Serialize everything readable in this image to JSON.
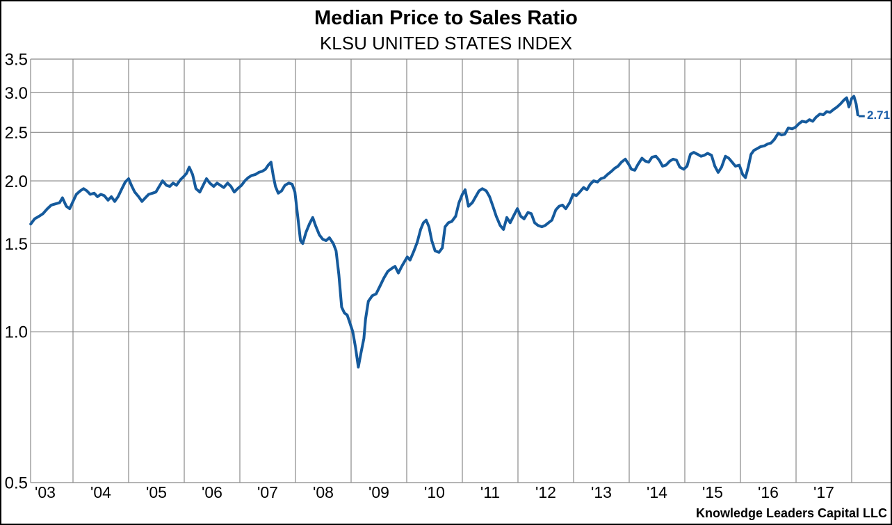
{
  "page": {
    "title": "Median Price to Sales Ratio",
    "subtitle": "KLSU UNITED STATES INDEX",
    "source": "Knowledge Leaders Capital LLC"
  },
  "chart_data": {
    "type": "line",
    "title": "Median Price to Sales Ratio",
    "subtitle": "KLSU UNITED STATES INDEX",
    "source": "Knowledge Leaders Capital LLC",
    "y_scale": "log",
    "ylim": [
      0.5,
      3.5
    ],
    "y_ticks": [
      "3.5",
      "3.0",
      "2.5",
      "2.0",
      "1.5",
      "1.0",
      "0.5"
    ],
    "x_ticks": [
      {
        "year": 2003,
        "label": "'03"
      },
      {
        "year": 2004,
        "label": "'04"
      },
      {
        "year": 2005,
        "label": "'05"
      },
      {
        "year": 2006,
        "label": "'06"
      },
      {
        "year": 2007,
        "label": "'07"
      },
      {
        "year": 2008,
        "label": "'08"
      },
      {
        "year": 2009,
        "label": "'09"
      },
      {
        "year": 2010,
        "label": "'10"
      },
      {
        "year": 2011,
        "label": "'11"
      },
      {
        "year": 2012,
        "label": "'12"
      },
      {
        "year": 2013,
        "label": "'13"
      },
      {
        "year": 2014,
        "label": "'14"
      },
      {
        "year": 2015,
        "label": "'15"
      },
      {
        "year": 2016,
        "label": "'16"
      },
      {
        "year": 2017,
        "label": "'17"
      }
    ],
    "grid": true,
    "legend": "none",
    "last_value_label": "2.71",
    "colors": {
      "line": "#155A9C",
      "value_label": "#1C5FA9",
      "grid": "#898989",
      "text": "#000000",
      "background": "#ffffff",
      "frame": "#000000"
    },
    "series": [
      {
        "name": "KLSU United States Index median price-to-sales",
        "x_unit": "decimal_year",
        "points": [
          [
            2003.24,
            1.64
          ],
          [
            2003.31,
            1.68
          ],
          [
            2003.39,
            1.7
          ],
          [
            2003.46,
            1.72
          ],
          [
            2003.54,
            1.76
          ],
          [
            2003.61,
            1.79
          ],
          [
            2003.69,
            1.8
          ],
          [
            2003.76,
            1.81
          ],
          [
            2003.81,
            1.85
          ],
          [
            2003.88,
            1.78
          ],
          [
            2003.94,
            1.76
          ],
          [
            2004.0,
            1.82
          ],
          [
            2004.06,
            1.88
          ],
          [
            2004.13,
            1.91
          ],
          [
            2004.19,
            1.93
          ],
          [
            2004.25,
            1.91
          ],
          [
            2004.31,
            1.88
          ],
          [
            2004.38,
            1.89
          ],
          [
            2004.44,
            1.86
          ],
          [
            2004.5,
            1.88
          ],
          [
            2004.56,
            1.87
          ],
          [
            2004.63,
            1.83
          ],
          [
            2004.69,
            1.86
          ],
          [
            2004.75,
            1.82
          ],
          [
            2004.81,
            1.86
          ],
          [
            2004.88,
            1.93
          ],
          [
            2004.94,
            1.99
          ],
          [
            2005.0,
            2.02
          ],
          [
            2005.05,
            1.96
          ],
          [
            2005.11,
            1.9
          ],
          [
            2005.18,
            1.86
          ],
          [
            2005.24,
            1.82
          ],
          [
            2005.3,
            1.85
          ],
          [
            2005.36,
            1.88
          ],
          [
            2005.43,
            1.89
          ],
          [
            2005.49,
            1.9
          ],
          [
            2005.55,
            1.95
          ],
          [
            2005.61,
            2.0
          ],
          [
            2005.68,
            1.96
          ],
          [
            2005.74,
            1.95
          ],
          [
            2005.8,
            1.98
          ],
          [
            2005.86,
            1.96
          ],
          [
            2005.93,
            2.01
          ],
          [
            2005.99,
            2.04
          ],
          [
            2006.04,
            2.07
          ],
          [
            2006.09,
            2.13
          ],
          [
            2006.15,
            2.06
          ],
          [
            2006.21,
            1.93
          ],
          [
            2006.28,
            1.9
          ],
          [
            2006.34,
            1.96
          ],
          [
            2006.4,
            2.02
          ],
          [
            2006.46,
            1.98
          ],
          [
            2006.53,
            1.95
          ],
          [
            2006.59,
            1.98
          ],
          [
            2006.65,
            1.96
          ],
          [
            2006.71,
            1.94
          ],
          [
            2006.78,
            1.98
          ],
          [
            2006.84,
            1.95
          ],
          [
            2006.9,
            1.9
          ],
          [
            2006.96,
            1.93
          ],
          [
            2007.03,
            1.96
          ],
          [
            2007.09,
            2.0
          ],
          [
            2007.15,
            2.03
          ],
          [
            2007.21,
            2.05
          ],
          [
            2007.28,
            2.06
          ],
          [
            2007.34,
            2.08
          ],
          [
            2007.4,
            2.09
          ],
          [
            2007.46,
            2.11
          ],
          [
            2007.51,
            2.15
          ],
          [
            2007.56,
            2.18
          ],
          [
            2007.6,
            2.05
          ],
          [
            2007.64,
            1.95
          ],
          [
            2007.69,
            1.89
          ],
          [
            2007.75,
            1.91
          ],
          [
            2007.81,
            1.96
          ],
          [
            2007.88,
            1.98
          ],
          [
            2007.94,
            1.97
          ],
          [
            2007.99,
            1.9
          ],
          [
            2008.04,
            1.7
          ],
          [
            2008.09,
            1.52
          ],
          [
            2008.13,
            1.5
          ],
          [
            2008.19,
            1.58
          ],
          [
            2008.25,
            1.64
          ],
          [
            2008.31,
            1.69
          ],
          [
            2008.36,
            1.63
          ],
          [
            2008.43,
            1.56
          ],
          [
            2008.49,
            1.53
          ],
          [
            2008.55,
            1.52
          ],
          [
            2008.61,
            1.54
          ],
          [
            2008.68,
            1.5
          ],
          [
            2008.73,
            1.45
          ],
          [
            2008.78,
            1.3
          ],
          [
            2008.83,
            1.12
          ],
          [
            2008.88,
            1.09
          ],
          [
            2008.93,
            1.08
          ],
          [
            2008.98,
            1.04
          ],
          [
            2009.03,
            1.0
          ],
          [
            2009.08,
            0.93
          ],
          [
            2009.13,
            0.85
          ],
          [
            2009.18,
            0.91
          ],
          [
            2009.23,
            0.97
          ],
          [
            2009.26,
            1.06
          ],
          [
            2009.31,
            1.15
          ],
          [
            2009.38,
            1.18
          ],
          [
            2009.45,
            1.19
          ],
          [
            2009.53,
            1.24
          ],
          [
            2009.59,
            1.28
          ],
          [
            2009.66,
            1.32
          ],
          [
            2009.74,
            1.34
          ],
          [
            2009.79,
            1.35
          ],
          [
            2009.85,
            1.31
          ],
          [
            2009.91,
            1.35
          ],
          [
            2009.96,
            1.38
          ],
          [
            2010.01,
            1.41
          ],
          [
            2010.06,
            1.39
          ],
          [
            2010.13,
            1.45
          ],
          [
            2010.19,
            1.51
          ],
          [
            2010.25,
            1.6
          ],
          [
            2010.3,
            1.65
          ],
          [
            2010.35,
            1.67
          ],
          [
            2010.4,
            1.62
          ],
          [
            2010.45,
            1.52
          ],
          [
            2010.51,
            1.45
          ],
          [
            2010.58,
            1.44
          ],
          [
            2010.64,
            1.47
          ],
          [
            2010.69,
            1.62
          ],
          [
            2010.75,
            1.65
          ],
          [
            2010.81,
            1.66
          ],
          [
            2010.88,
            1.7
          ],
          [
            2010.94,
            1.81
          ],
          [
            2011.0,
            1.88
          ],
          [
            2011.05,
            1.92
          ],
          [
            2011.11,
            1.78
          ],
          [
            2011.18,
            1.81
          ],
          [
            2011.24,
            1.86
          ],
          [
            2011.3,
            1.91
          ],
          [
            2011.36,
            1.93
          ],
          [
            2011.43,
            1.91
          ],
          [
            2011.49,
            1.86
          ],
          [
            2011.55,
            1.78
          ],
          [
            2011.61,
            1.7
          ],
          [
            2011.68,
            1.63
          ],
          [
            2011.74,
            1.6
          ],
          [
            2011.8,
            1.69
          ],
          [
            2011.86,
            1.65
          ],
          [
            2011.93,
            1.71
          ],
          [
            2011.99,
            1.76
          ],
          [
            2012.05,
            1.7
          ],
          [
            2012.11,
            1.68
          ],
          [
            2012.18,
            1.73
          ],
          [
            2012.24,
            1.72
          ],
          [
            2012.3,
            1.65
          ],
          [
            2012.36,
            1.63
          ],
          [
            2012.43,
            1.62
          ],
          [
            2012.49,
            1.63
          ],
          [
            2012.55,
            1.65
          ],
          [
            2012.61,
            1.67
          ],
          [
            2012.68,
            1.75
          ],
          [
            2012.74,
            1.78
          ],
          [
            2012.8,
            1.79
          ],
          [
            2012.86,
            1.76
          ],
          [
            2012.93,
            1.81
          ],
          [
            2012.99,
            1.88
          ],
          [
            2013.05,
            1.87
          ],
          [
            2013.11,
            1.9
          ],
          [
            2013.18,
            1.94
          ],
          [
            2013.24,
            1.92
          ],
          [
            2013.3,
            1.97
          ],
          [
            2013.36,
            2.0
          ],
          [
            2013.43,
            1.99
          ],
          [
            2013.49,
            2.02
          ],
          [
            2013.55,
            2.03
          ],
          [
            2013.61,
            2.06
          ],
          [
            2013.68,
            2.09
          ],
          [
            2013.74,
            2.12
          ],
          [
            2013.8,
            2.14
          ],
          [
            2013.86,
            2.18
          ],
          [
            2013.93,
            2.21
          ],
          [
            2013.99,
            2.16
          ],
          [
            2014.04,
            2.11
          ],
          [
            2014.1,
            2.1
          ],
          [
            2014.16,
            2.16
          ],
          [
            2014.23,
            2.22
          ],
          [
            2014.29,
            2.19
          ],
          [
            2014.35,
            2.18
          ],
          [
            2014.41,
            2.23
          ],
          [
            2014.48,
            2.24
          ],
          [
            2014.54,
            2.2
          ],
          [
            2014.6,
            2.14
          ],
          [
            2014.66,
            2.15
          ],
          [
            2014.73,
            2.19
          ],
          [
            2014.79,
            2.21
          ],
          [
            2014.85,
            2.2
          ],
          [
            2014.91,
            2.13
          ],
          [
            2014.98,
            2.11
          ],
          [
            2015.04,
            2.14
          ],
          [
            2015.1,
            2.26
          ],
          [
            2015.16,
            2.28
          ],
          [
            2015.23,
            2.26
          ],
          [
            2015.29,
            2.24
          ],
          [
            2015.35,
            2.25
          ],
          [
            2015.41,
            2.27
          ],
          [
            2015.48,
            2.25
          ],
          [
            2015.54,
            2.14
          ],
          [
            2015.6,
            2.08
          ],
          [
            2015.66,
            2.13
          ],
          [
            2015.73,
            2.24
          ],
          [
            2015.79,
            2.22
          ],
          [
            2015.85,
            2.18
          ],
          [
            2015.91,
            2.14
          ],
          [
            2015.98,
            2.15
          ],
          [
            2016.04,
            2.06
          ],
          [
            2016.09,
            2.03
          ],
          [
            2016.14,
            2.13
          ],
          [
            2016.19,
            2.26
          ],
          [
            2016.24,
            2.3
          ],
          [
            2016.3,
            2.32
          ],
          [
            2016.36,
            2.34
          ],
          [
            2016.43,
            2.35
          ],
          [
            2016.49,
            2.37
          ],
          [
            2016.55,
            2.38
          ],
          [
            2016.61,
            2.42
          ],
          [
            2016.68,
            2.49
          ],
          [
            2016.74,
            2.47
          ],
          [
            2016.8,
            2.48
          ],
          [
            2016.86,
            2.55
          ],
          [
            2016.93,
            2.54
          ],
          [
            2016.99,
            2.56
          ],
          [
            2017.05,
            2.6
          ],
          [
            2017.11,
            2.63
          ],
          [
            2017.18,
            2.62
          ],
          [
            2017.24,
            2.65
          ],
          [
            2017.3,
            2.63
          ],
          [
            2017.36,
            2.68
          ],
          [
            2017.43,
            2.72
          ],
          [
            2017.49,
            2.71
          ],
          [
            2017.55,
            2.75
          ],
          [
            2017.61,
            2.74
          ],
          [
            2017.68,
            2.78
          ],
          [
            2017.74,
            2.81
          ],
          [
            2017.8,
            2.85
          ],
          [
            2017.86,
            2.9
          ],
          [
            2017.91,
            2.93
          ],
          [
            2017.95,
            2.81
          ],
          [
            2018.0,
            2.92
          ],
          [
            2018.04,
            2.95
          ],
          [
            2018.08,
            2.85
          ],
          [
            2018.11,
            2.71
          ]
        ]
      }
    ]
  }
}
